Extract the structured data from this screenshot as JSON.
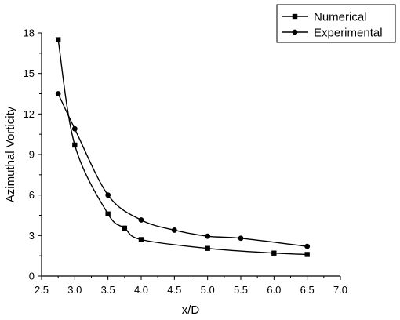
{
  "chart_data": {
    "type": "line",
    "xlabel": "x/D",
    "ylabel": "Azimuthal Vorticity",
    "xlim": [
      2.5,
      7.0
    ],
    "ylim": [
      0,
      18
    ],
    "xticks": [
      "2.5",
      "3.0",
      "3.5",
      "4.0",
      "4.5",
      "5.0",
      "5.5",
      "6.0",
      "6.5",
      "7.0"
    ],
    "yticks": [
      "0",
      "3",
      "6",
      "9",
      "12",
      "15",
      "18"
    ],
    "grid": false,
    "legend_position": "top-right",
    "smooth": true,
    "series": [
      {
        "name": "Numerical",
        "marker": "square",
        "color": "#000000",
        "x": [
          2.75,
          3.0,
          3.5,
          3.75,
          4.0,
          5.0,
          6.0,
          6.5
        ],
        "y": [
          17.5,
          9.7,
          4.6,
          3.55,
          2.7,
          2.05,
          1.7,
          1.6
        ]
      },
      {
        "name": "Experimental",
        "marker": "circle",
        "color": "#000000",
        "x": [
          2.75,
          3.0,
          3.5,
          4.0,
          4.5,
          5.0,
          5.5,
          6.5
        ],
        "y": [
          13.5,
          10.9,
          6.0,
          4.15,
          3.4,
          2.95,
          2.8,
          2.2
        ]
      }
    ]
  }
}
